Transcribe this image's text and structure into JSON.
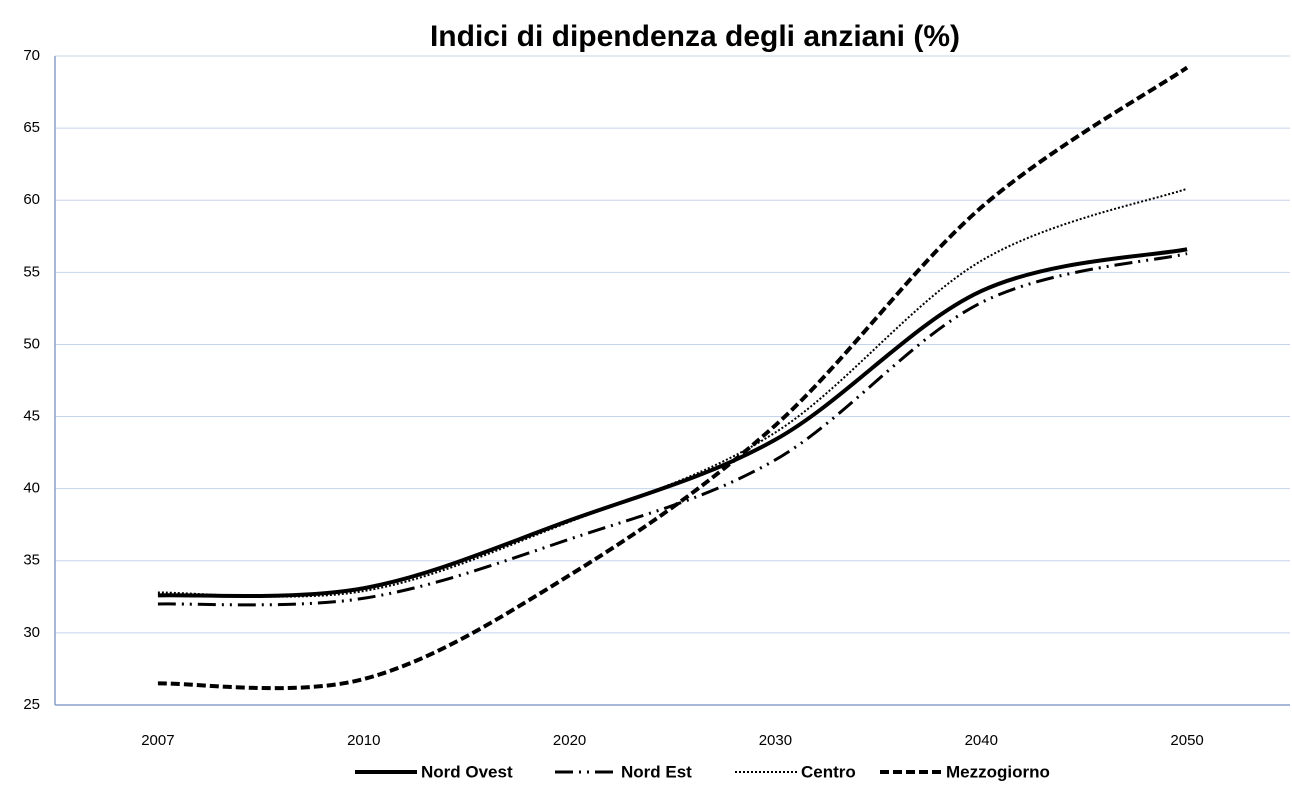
{
  "chart_data": {
    "type": "line",
    "title": "Indici di dipendenza degli anziani (%)",
    "categories": [
      "2007",
      "2010",
      "2020",
      "2030",
      "2040",
      "2050"
    ],
    "series": [
      {
        "name": "Nord Ovest",
        "color": "#000000",
        "dash": "solid",
        "values": [
          32.6,
          33.1,
          37.8,
          43.4,
          53.7,
          56.6
        ]
      },
      {
        "name": "Nord Est",
        "color": "#000000",
        "dash": "dash-dot-dot",
        "values": [
          32.0,
          32.4,
          36.5,
          42.0,
          52.9,
          56.3
        ]
      },
      {
        "name": "Centro",
        "color": "#000000",
        "dash": "dotted",
        "values": [
          32.8,
          32.9,
          37.7,
          43.9,
          55.8,
          60.8
        ]
      },
      {
        "name": "Mezzogiorno",
        "color": "#000000",
        "dash": "dashed",
        "values": [
          26.5,
          26.8,
          34.0,
          44.4,
          59.5,
          69.2
        ]
      }
    ],
    "ylim": [
      25,
      70
    ],
    "yticks": [
      25,
      30,
      35,
      40,
      45,
      50,
      55,
      60,
      65,
      70
    ],
    "grid": true,
    "legend": "bottom"
  }
}
